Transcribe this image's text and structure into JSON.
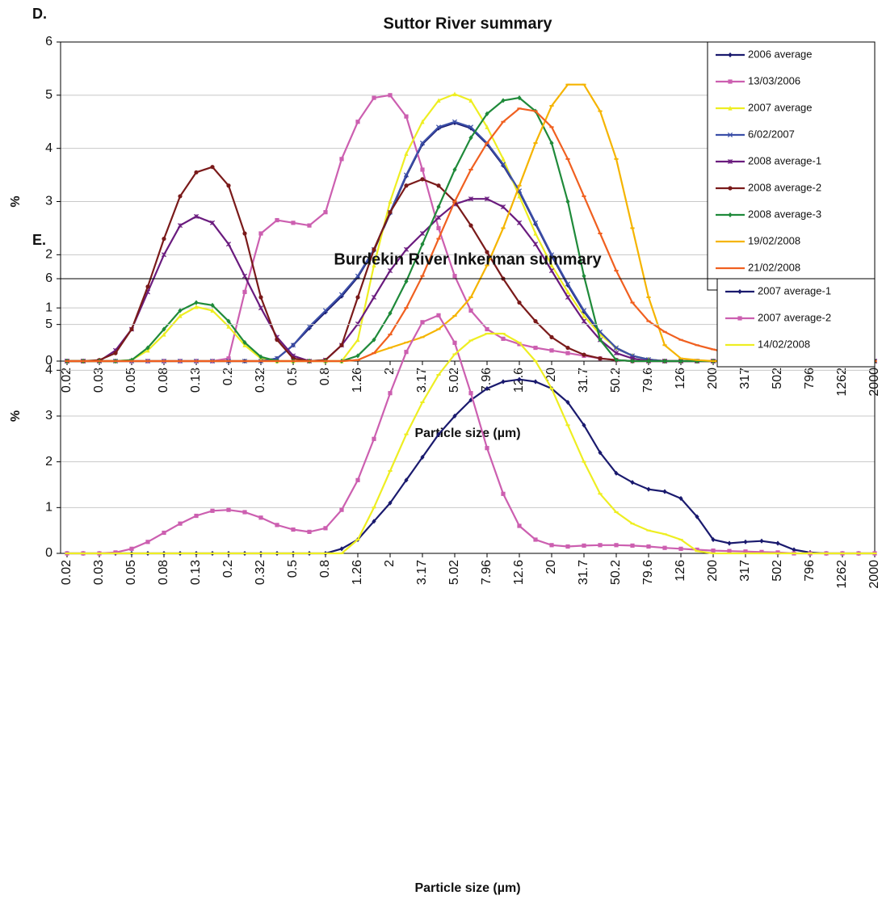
{
  "chart_data": [
    {
      "type": "line",
      "label": "D.",
      "title": "Suttor River summary",
      "x_label": "Particle size (µm)",
      "y_label": "%",
      "categories": [
        "0.02",
        null,
        "0.03",
        null,
        "0.05",
        null,
        "0.08",
        null,
        "0.13",
        null,
        "0.2",
        null,
        "0.32",
        null,
        "0.5",
        null,
        "0.8",
        null,
        "1.26",
        null,
        "2",
        null,
        "3.17",
        null,
        "5.02",
        null,
        "7.96",
        null,
        "12.6",
        null,
        "20",
        null,
        "31.7",
        null,
        "50.2",
        null,
        "79.6",
        null,
        "126",
        null,
        "200",
        null,
        "317",
        null,
        "502",
        null,
        "796",
        null,
        "1262",
        null,
        "2000"
      ],
      "ylim": [
        0,
        6
      ],
      "yticks": [
        0,
        1,
        2,
        3,
        4,
        5,
        6
      ],
      "grid": true,
      "legend": "upper right",
      "series": [
        {
          "name": "2006 average",
          "color": "#1a1a6e",
          "marker": "diamond",
          "values": [
            0,
            0,
            0,
            0,
            0,
            0,
            0,
            0,
            0,
            0,
            0,
            0,
            0,
            0.05,
            0.3,
            0.62,
            0.92,
            1.22,
            1.58,
            2.08,
            2.78,
            3.48,
            4.08,
            4.38,
            4.48,
            4.38,
            4.08,
            3.68,
            3.18,
            2.58,
            1.98,
            1.43,
            0.93,
            0.53,
            0.24,
            0.1,
            0.03,
            0,
            0,
            0,
            0,
            0,
            0,
            0,
            0,
            0,
            0,
            0,
            0,
            0,
            0
          ]
        },
        {
          "name": "13/03/2006",
          "color": "#cc5fb0",
          "marker": "square",
          "values": [
            0,
            0,
            0,
            0,
            0,
            0,
            0,
            0,
            0,
            0,
            0.05,
            1.3,
            2.4,
            2.65,
            2.6,
            2.55,
            2.8,
            3.8,
            4.5,
            4.95,
            5.0,
            4.6,
            3.6,
            2.5,
            1.6,
            0.95,
            0.6,
            0.42,
            0.32,
            0.25,
            0.2,
            0.15,
            0.1,
            0.05,
            0.02,
            0,
            0,
            0,
            0,
            0,
            0,
            0,
            0,
            0,
            0,
            0,
            0,
            0,
            0,
            0,
            0
          ]
        },
        {
          "name": "2007 average",
          "color": "#eeee22",
          "marker": "triangle",
          "values": [
            0,
            0,
            0,
            0,
            0.02,
            0.2,
            0.5,
            0.85,
            1.02,
            0.95,
            0.65,
            0.3,
            0.05,
            0,
            0,
            0,
            0,
            0,
            0.4,
            1.8,
            3.0,
            3.9,
            4.5,
            4.9,
            5.02,
            4.9,
            4.4,
            3.8,
            3.1,
            2.4,
            1.8,
            1.3,
            0.85,
            0.5,
            0.25,
            0.1,
            0.03,
            0,
            0,
            0,
            0,
            0,
            0,
            0,
            0,
            0,
            0,
            0,
            0,
            0,
            0
          ]
        },
        {
          "name": "6/02/2007",
          "color": "#3b4fa8",
          "marker": "x",
          "values": [
            0,
            0,
            0,
            0,
            0,
            0,
            0,
            0,
            0,
            0,
            0,
            0,
            0,
            0.05,
            0.3,
            0.65,
            0.95,
            1.25,
            1.6,
            2.1,
            2.8,
            3.5,
            4.1,
            4.4,
            4.5,
            4.4,
            4.1,
            3.7,
            3.2,
            2.6,
            2.0,
            1.45,
            0.95,
            0.55,
            0.25,
            0.1,
            0.03,
            0,
            0,
            0,
            0,
            0,
            0,
            0,
            0,
            0,
            0,
            0,
            0,
            0,
            0
          ]
        },
        {
          "name": "2008 average-1",
          "color": "#6a1b7e",
          "marker": "star",
          "values": [
            0,
            0,
            0,
            0.2,
            0.6,
            1.3,
            2.0,
            2.55,
            2.72,
            2.6,
            2.2,
            1.6,
            1.0,
            0.45,
            0.1,
            0,
            0.02,
            0.3,
            0.7,
            1.2,
            1.7,
            2.1,
            2.4,
            2.7,
            2.95,
            3.05,
            3.05,
            2.9,
            2.6,
            2.2,
            1.7,
            1.2,
            0.75,
            0.4,
            0.15,
            0.05,
            0,
            0,
            0,
            0,
            0,
            0,
            0,
            0,
            0,
            0,
            0,
            0,
            0,
            0,
            0
          ]
        },
        {
          "name": "2008 average-2",
          "color": "#7a1a1a",
          "marker": "circle",
          "values": [
            0,
            0,
            0.02,
            0.15,
            0.6,
            1.4,
            2.3,
            3.1,
            3.55,
            3.65,
            3.3,
            2.4,
            1.2,
            0.4,
            0.05,
            0,
            0.02,
            0.3,
            1.2,
            2.1,
            2.8,
            3.3,
            3.42,
            3.3,
            3.0,
            2.55,
            2.05,
            1.55,
            1.1,
            0.75,
            0.45,
            0.25,
            0.12,
            0.05,
            0.02,
            0,
            0,
            0,
            0,
            0,
            0,
            0,
            0,
            0,
            0,
            0,
            0,
            0,
            0,
            0,
            0
          ]
        },
        {
          "name": "2008 average-3",
          "color": "#1f8a3a",
          "marker": "diamond",
          "values": [
            0,
            0,
            0,
            0,
            0.02,
            0.25,
            0.6,
            0.95,
            1.1,
            1.05,
            0.75,
            0.35,
            0.08,
            0,
            0,
            0,
            0,
            0,
            0.1,
            0.4,
            0.9,
            1.5,
            2.2,
            2.9,
            3.6,
            4.2,
            4.65,
            4.9,
            4.95,
            4.7,
            4.1,
            3.0,
            1.6,
            0.4,
            0.02,
            0,
            0,
            0,
            0,
            0,
            0,
            0,
            0,
            0,
            0,
            0,
            0,
            0,
            0,
            0,
            0
          ]
        },
        {
          "name": "19/02/2008",
          "color": "#f5b400",
          "marker": "dash",
          "values": [
            0,
            0,
            0,
            0,
            0,
            0,
            0,
            0,
            0,
            0,
            0,
            0,
            0,
            0,
            0,
            0,
            0,
            0,
            0.02,
            0.15,
            0.25,
            0.35,
            0.45,
            0.6,
            0.85,
            1.2,
            1.8,
            2.5,
            3.3,
            4.1,
            4.8,
            5.2,
            5.2,
            4.7,
            3.8,
            2.5,
            1.2,
            0.3,
            0.05,
            0.02,
            0,
            0,
            0,
            0,
            0,
            0,
            0,
            0,
            0,
            0,
            0
          ]
        },
        {
          "name": "21/02/2008",
          "color": "#f06020",
          "marker": "dash",
          "values": [
            0,
            0,
            0,
            0,
            0,
            0,
            0,
            0,
            0,
            0,
            0,
            0,
            0,
            0,
            0,
            0,
            0,
            0,
            0.02,
            0.15,
            0.5,
            1.0,
            1.6,
            2.3,
            3.0,
            3.6,
            4.1,
            4.5,
            4.75,
            4.7,
            4.4,
            3.8,
            3.1,
            2.4,
            1.7,
            1.1,
            0.75,
            0.55,
            0.4,
            0.3,
            0.22,
            0.15,
            0.08,
            0.03,
            0,
            0,
            0,
            0,
            0,
            0,
            0
          ]
        }
      ]
    },
    {
      "type": "line",
      "label": "E.",
      "title": "Burdekin River Inkerman summary",
      "x_label": "Particle size (µm)",
      "y_label": "%",
      "categories": [
        "0.02",
        null,
        "0.03",
        null,
        "0.05",
        null,
        "0.08",
        null,
        "0.13",
        null,
        "0.2",
        null,
        "0.32",
        null,
        "0.5",
        null,
        "0.8",
        null,
        "1.26",
        null,
        "2",
        null,
        "3.17",
        null,
        "5.02",
        null,
        "7.96",
        null,
        "12.6",
        null,
        "20",
        null,
        "31.7",
        null,
        "50.2",
        null,
        "79.6",
        null,
        "126",
        null,
        "200",
        null,
        "317",
        null,
        "502",
        null,
        "796",
        null,
        "1262",
        null,
        "2000"
      ],
      "ylim": [
        0,
        6
      ],
      "yticks": [
        0,
        1,
        2,
        3,
        4,
        5,
        6
      ],
      "grid": true,
      "legend": "upper right",
      "series": [
        {
          "name": "2007 average-1",
          "color": "#1a1a6e",
          "marker": "diamond",
          "values": [
            0,
            0,
            0,
            0,
            0,
            0,
            0,
            0,
            0,
            0,
            0,
            0,
            0,
            0,
            0,
            0,
            0,
            0.1,
            0.3,
            0.7,
            1.1,
            1.6,
            2.1,
            2.6,
            3.0,
            3.35,
            3.6,
            3.75,
            3.8,
            3.75,
            3.6,
            3.3,
            2.8,
            2.2,
            1.75,
            1.55,
            1.4,
            1.35,
            1.2,
            0.8,
            0.3,
            0.22,
            0.25,
            0.27,
            0.22,
            0.08,
            0.02,
            0,
            0,
            0,
            0
          ]
        },
        {
          "name": "2007 average-2",
          "color": "#cc5fb0",
          "marker": "square",
          "values": [
            0,
            0,
            0,
            0.02,
            0.1,
            0.25,
            0.45,
            0.65,
            0.82,
            0.93,
            0.95,
            0.9,
            0.78,
            0.62,
            0.52,
            0.47,
            0.55,
            0.95,
            1.6,
            2.5,
            3.5,
            4.4,
            5.05,
            5.2,
            4.6,
            3.5,
            2.3,
            1.3,
            0.6,
            0.3,
            0.18,
            0.15,
            0.17,
            0.18,
            0.18,
            0.17,
            0.15,
            0.12,
            0.1,
            0.08,
            0.06,
            0.05,
            0.04,
            0.03,
            0.02,
            0,
            0,
            0,
            0,
            0,
            0
          ]
        },
        {
          "name": "14/02/2008",
          "color": "#eeee22",
          "marker": "dash",
          "values": [
            0,
            0,
            0,
            0,
            0,
            0,
            0,
            0,
            0,
            0,
            0,
            0,
            0,
            0,
            0,
            0,
            0,
            0,
            0.3,
            1.0,
            1.8,
            2.6,
            3.3,
            3.9,
            4.35,
            4.65,
            4.8,
            4.8,
            4.6,
            4.2,
            3.6,
            2.8,
            2.0,
            1.3,
            0.9,
            0.65,
            0.5,
            0.42,
            0.3,
            0.05,
            0,
            0,
            0,
            0,
            0,
            0,
            0,
            0,
            0,
            0,
            0
          ]
        }
      ]
    }
  ]
}
